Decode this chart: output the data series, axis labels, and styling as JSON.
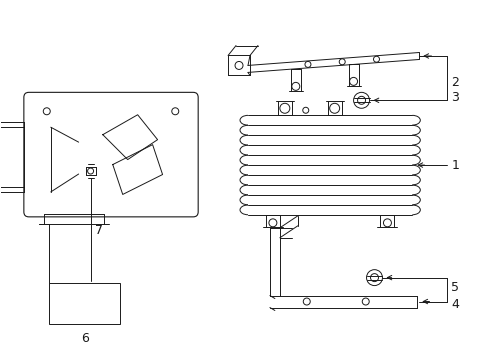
{
  "bg_color": "#ffffff",
  "line_color": "#1a1a1a",
  "label_color": "#1a1a1a",
  "fig_width": 4.89,
  "fig_height": 3.6,
  "dpi": 100
}
